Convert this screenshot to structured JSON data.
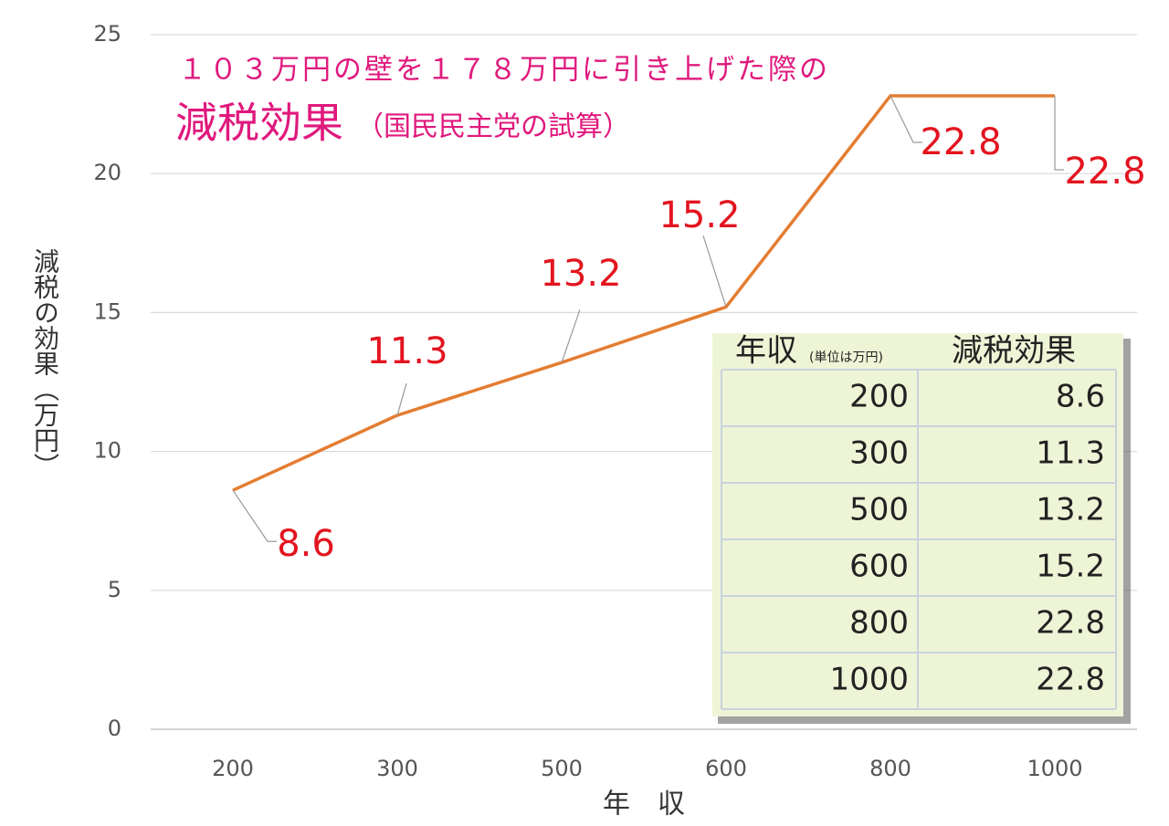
{
  "chart_data": {
    "type": "line",
    "title": "１０３万円の壁を１７８万円に引き上げた際の",
    "subtitle": "減税効果",
    "subtitle_note": "（国民民主党の試算）",
    "xlabel": "年　収",
    "ylabel": "減税の効果（万円）",
    "categories": [
      "200",
      "300",
      "500",
      "600",
      "800",
      "1000"
    ],
    "values": [
      8.6,
      11.3,
      13.2,
      15.2,
      22.8,
      22.8
    ],
    "color": "#e47d32",
    "label_color": "#e3141f",
    "ylim": [
      0,
      25
    ],
    "yticks": [
      0,
      5,
      10,
      15,
      20,
      25
    ],
    "grid": true,
    "table_headers": [
      "年収",
      "(単位は万円)",
      "減税効果"
    ]
  }
}
